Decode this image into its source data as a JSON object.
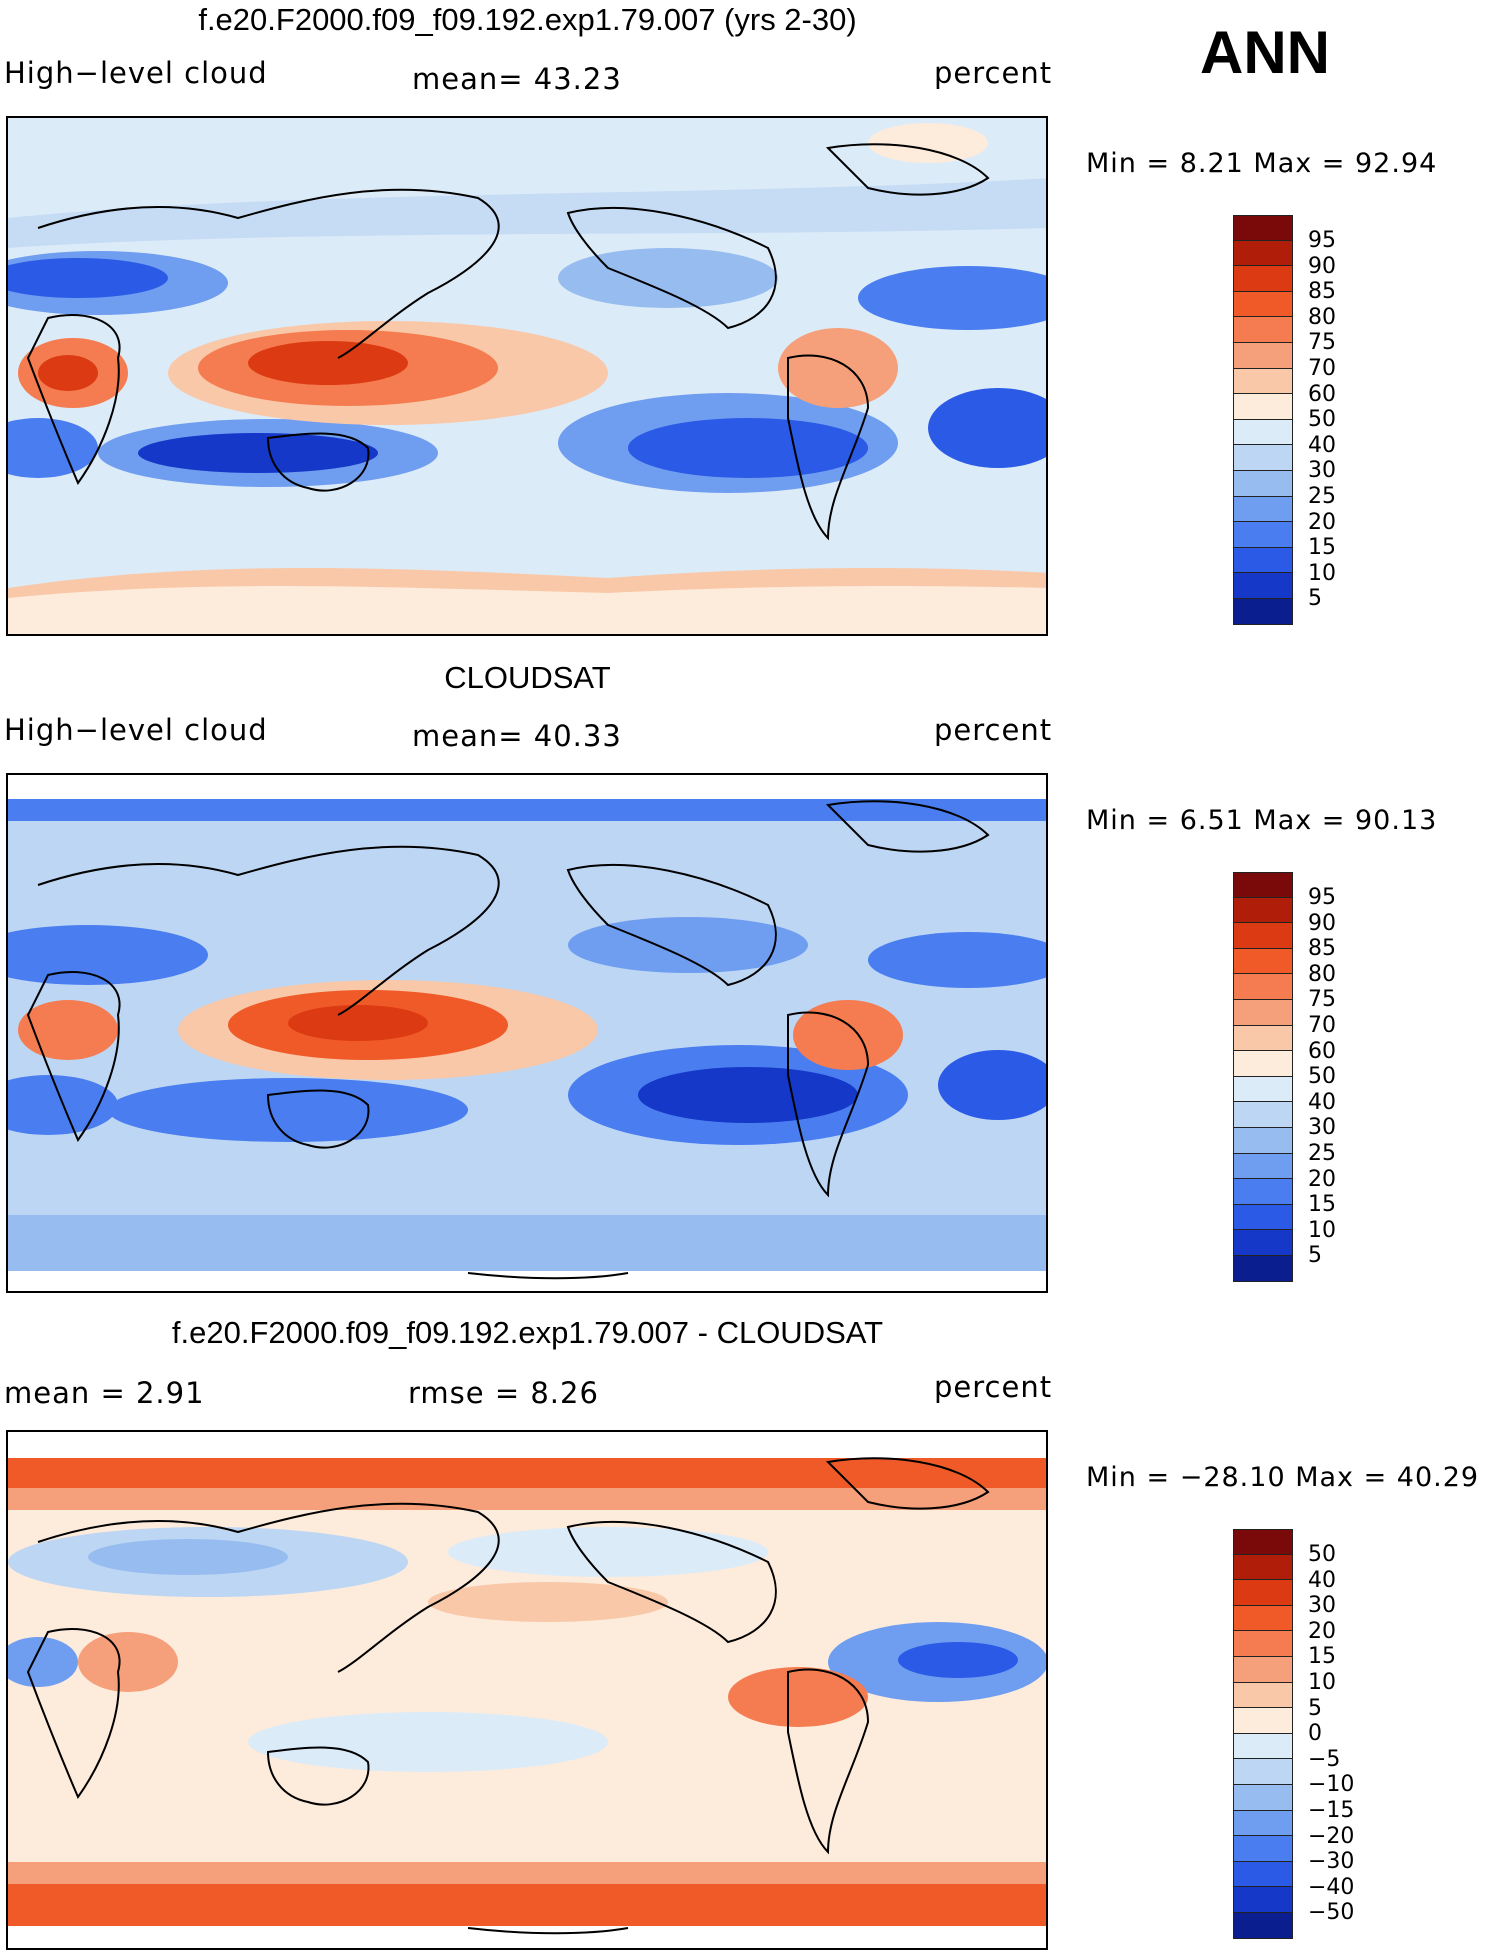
{
  "season": "ANN",
  "panels": [
    {
      "title": "f.e20.F2000.f09_f09.192.exp1.79.007 (yrs 2-30)",
      "left_label": "High−level cloud",
      "center_label": "mean=   43.23",
      "right_label": "percent",
      "minmax": "Min =     8.21  Max  =   92.94",
      "colorbar_labels": [
        "95",
        "90",
        "85",
        "80",
        "75",
        "70",
        "60",
        "50",
        "40",
        "30",
        "25",
        "20",
        "15",
        "10",
        "5"
      ]
    },
    {
      "title": "CLOUDSAT",
      "left_label": "High−level cloud",
      "center_label": "mean=   40.33",
      "right_label": "percent",
      "minmax": "Min =     6.51  Max  =   90.13",
      "colorbar_labels": [
        "95",
        "90",
        "85",
        "80",
        "75",
        "70",
        "60",
        "50",
        "40",
        "30",
        "25",
        "20",
        "15",
        "10",
        "5"
      ]
    },
    {
      "title": "f.e20.F2000.f09_f09.192.exp1.79.007 - CLOUDSAT",
      "left_label": "mean  =     2.91",
      "center_label": "rmse  =     8.26",
      "right_label": "percent",
      "minmax": "Min  =  −28.10  Max  =    40.29",
      "colorbar_labels": [
        "50",
        "40",
        "30",
        "20",
        "15",
        "10",
        "5",
        "0",
        "−5",
        "−10",
        "−15",
        "−20",
        "−30",
        "−40",
        "−50"
      ]
    }
  ],
  "colors": {
    "scale": [
      "#7a0a0a",
      "#b01e0a",
      "#dc3a12",
      "#f05a28",
      "#f47c50",
      "#f5a07a",
      "#f9c8a8",
      "#fdebdc",
      "#dcebf8",
      "#bcd6f4",
      "#97bcef",
      "#6f9def",
      "#4a7ef0",
      "#2a5ae6",
      "#1538c8",
      "#0a1e90"
    ]
  }
}
